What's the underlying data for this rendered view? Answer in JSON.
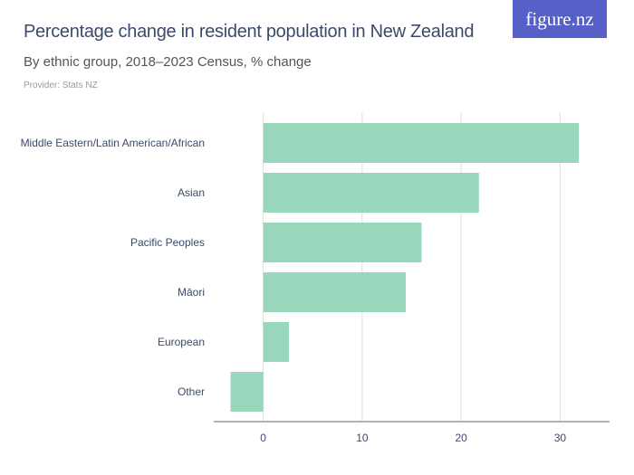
{
  "header": {
    "title": "Percentage change in resident population in New Zealand",
    "subtitle": "By ethnic group, 2018–2023 Census, % change",
    "provider": "Provider: Stats NZ",
    "logo": "figure.nz"
  },
  "colors": {
    "bar": "#98d7bc",
    "text": "#3b4a6b",
    "logo_bg": "#5661c8",
    "grid": "#dddddd"
  },
  "chart_data": {
    "type": "bar",
    "orientation": "horizontal",
    "title": "Percentage change in resident population in New Zealand",
    "subtitle": "By ethnic group, 2018–2023 Census, % change",
    "categories": [
      "Middle Eastern/Latin American/African",
      "Asian",
      "Pacific Peoples",
      "Māori",
      "European",
      "Other"
    ],
    "values": [
      31.9,
      21.8,
      16.0,
      14.4,
      2.6,
      -3.3
    ],
    "xlim": [
      -5,
      35
    ],
    "xticks": [
      0,
      10,
      20,
      30
    ],
    "grid": true,
    "xlabel": "",
    "ylabel": ""
  }
}
